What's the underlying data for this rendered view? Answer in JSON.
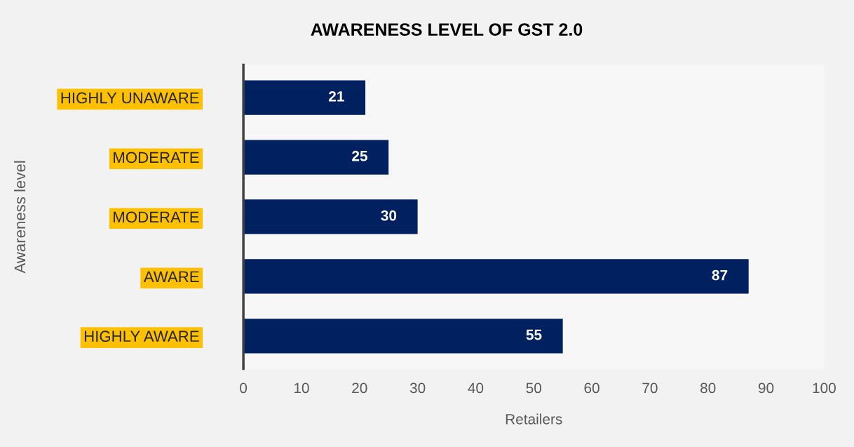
{
  "chart_data": {
    "type": "bar",
    "orientation": "horizontal",
    "title": "AWARENESS LEVEL OF GST 2.0",
    "xlabel": "Retailers",
    "ylabel": "Awareness level",
    "categories": [
      "HIGHLY UNAWARE",
      "MODERATE",
      "MODERATE",
      "AWARE",
      "HIGHLY AWARE"
    ],
    "values": [
      21,
      25,
      30,
      87,
      55
    ],
    "color": "#002060",
    "xlim": [
      0,
      100
    ],
    "xticks": [
      0,
      10,
      20,
      30,
      40,
      50,
      60,
      70,
      80,
      90,
      100
    ],
    "data_labels": true,
    "grid": false,
    "legend": false
  }
}
